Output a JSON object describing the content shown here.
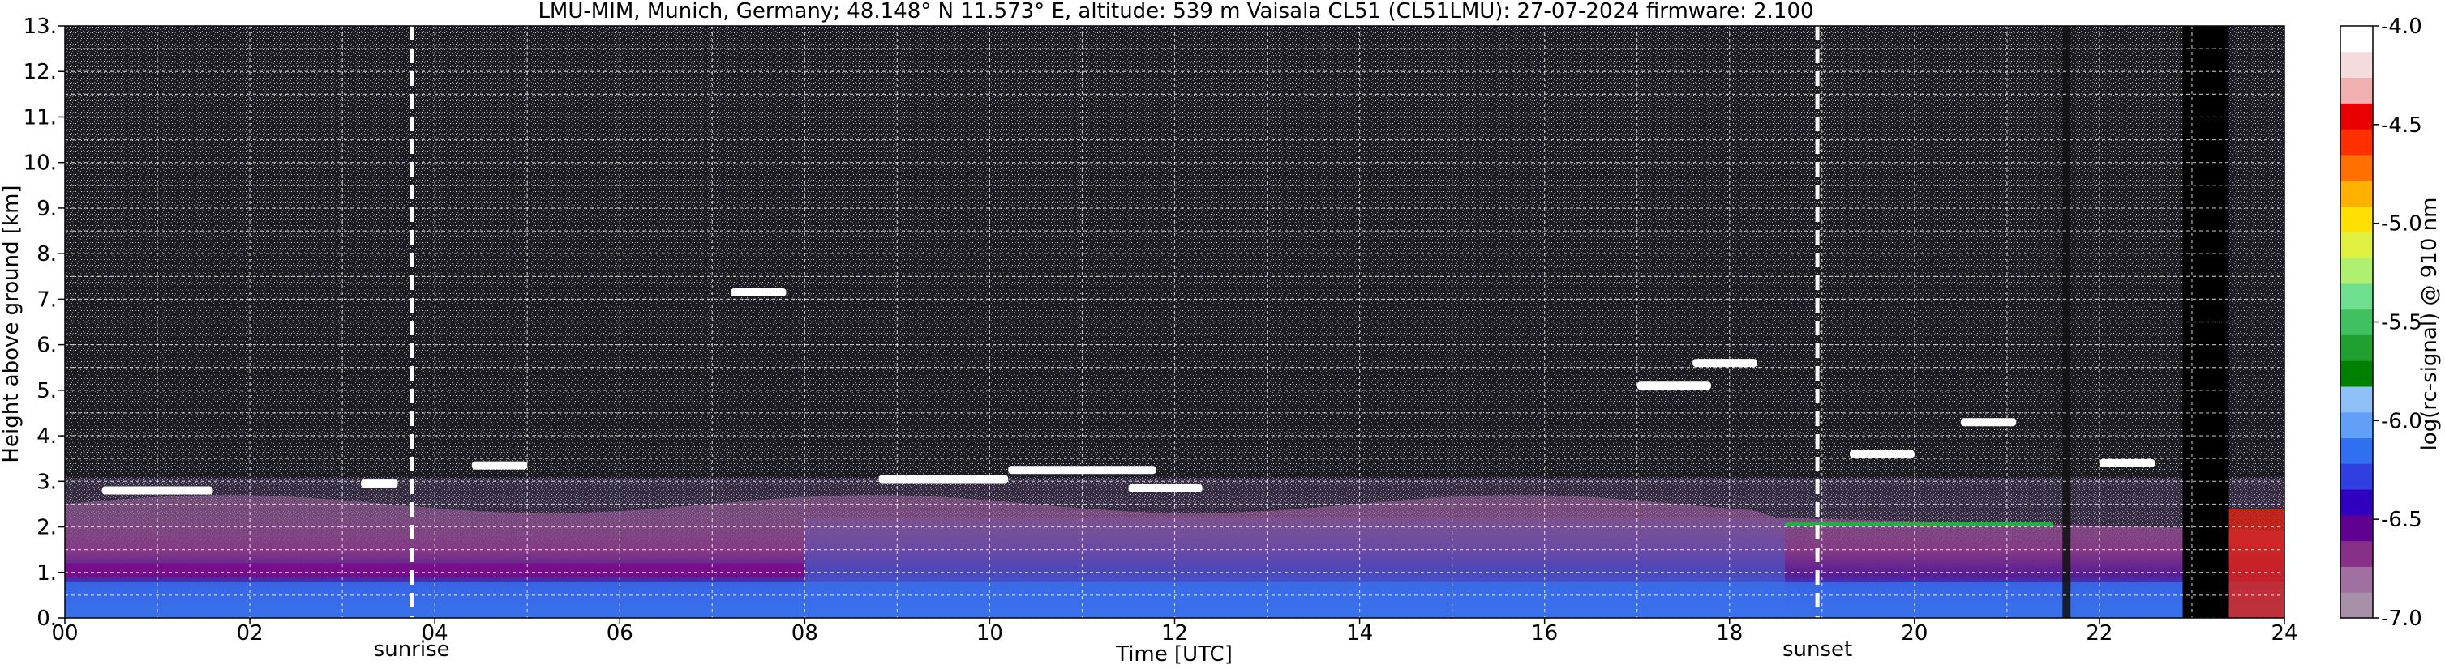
{
  "chart_data": {
    "type": "heatmap",
    "title": "LMU-MIM, Munich, Germany; 48.148° N 11.573° E, altitude: 539 m    Vaisala CL51 (CL51LMU): 27-07-2024    firmware: 2.100",
    "xlabel": "Time [UTC]",
    "ylabel": "Height above ground [km]",
    "x_range": [
      0,
      24
    ],
    "y_range": [
      0,
      13
    ],
    "x_ticks": [
      "00",
      "02",
      "04",
      "06",
      "08",
      "10",
      "12",
      "14",
      "16",
      "18",
      "20",
      "22",
      "24"
    ],
    "y_ticks": [
      "0.",
      "1.",
      "2.",
      "3.",
      "4.",
      "5.",
      "6.",
      "7.",
      "8.",
      "9.",
      "10.",
      "11.",
      "12.",
      "13."
    ],
    "grid": true,
    "colorbar": {
      "label": "log(rc-signal) @ 910 nm",
      "range": [
        -7.0,
        -4.0
      ],
      "ticks": [
        "-4.0",
        "-4.5",
        "-5.0",
        "-5.5",
        "-6.0",
        "-6.5",
        "-7.0"
      ],
      "colors": [
        "#a890a8",
        "#a070a0",
        "#883088",
        "#600090",
        "#3000c0",
        "#3040e0",
        "#3070f0",
        "#60a0f8",
        "#90c0f8",
        "#008000",
        "#20a030",
        "#40c060",
        "#70e090",
        "#b0f070",
        "#e0f040",
        "#ffe000",
        "#ffb000",
        "#ff7000",
        "#ff3000",
        "#e80000",
        "#f0b0b0",
        "#f4dcdc",
        "#ffffff"
      ]
    },
    "events": [
      {
        "label": "sunrise",
        "x": 3.75
      },
      {
        "label": "sunset",
        "x": 18.95
      }
    ]
  }
}
